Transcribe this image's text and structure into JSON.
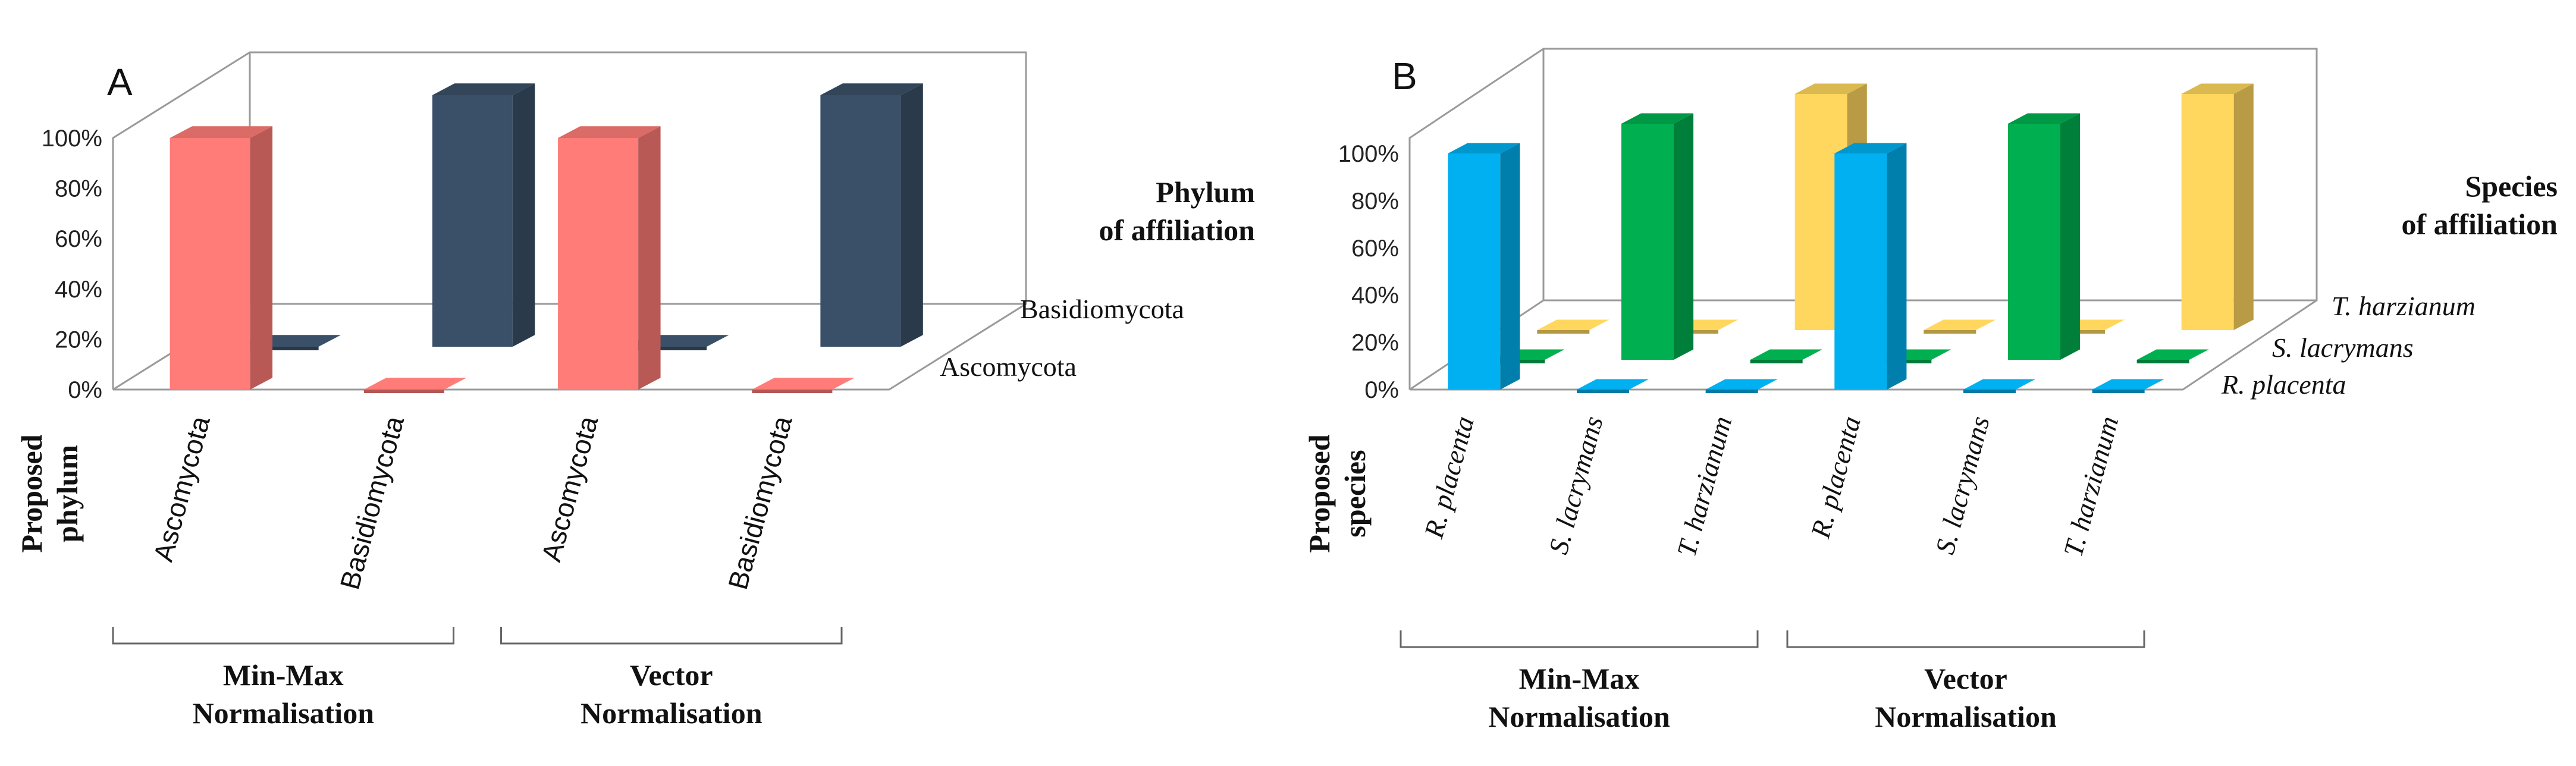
{
  "chart_data": [
    {
      "panel": "A",
      "type": "bar",
      "subtype": "3d-clustered",
      "title": "",
      "ylabel": "",
      "ylim": [
        0,
        100
      ],
      "ytick_labels": [
        "0%",
        "20%",
        "40%",
        "60%",
        "80%",
        "100%"
      ],
      "depth_title_line1": "Phylum",
      "depth_title_line2": "of affiliation",
      "depth_categories": [
        "Ascomycota",
        "Basidiomycota"
      ],
      "proposed_label_line1": "Proposed",
      "proposed_label_line2": "phylum",
      "categories": [
        "Ascomycota",
        "Basidiomycota",
        "Ascomycota",
        "Basidiomycota"
      ],
      "groups": [
        {
          "line1": "Min-Max",
          "line2": "Normalisation",
          "categories": [
            0,
            1
          ]
        },
        {
          "line1": "Vector",
          "line2": "Normalisation",
          "categories": [
            2,
            3
          ]
        }
      ],
      "series": [
        {
          "name": "Ascomycota",
          "color": "#FF7C78",
          "values": [
            100,
            0,
            100,
            0
          ]
        },
        {
          "name": "Basidiomycota",
          "color": "#3A5068",
          "values": [
            0,
            100,
            0,
            100
          ]
        }
      ]
    },
    {
      "panel": "B",
      "type": "bar",
      "subtype": "3d-clustered",
      "title": "",
      "ylabel": "",
      "ylim": [
        0,
        100
      ],
      "ytick_labels": [
        "0%",
        "20%",
        "40%",
        "60%",
        "80%",
        "100%"
      ],
      "depth_title_line1": "Species",
      "depth_title_line2": "of affiliation",
      "depth_categories": [
        "R. placenta",
        "S. lacrymans",
        "T. harzianum"
      ],
      "proposed_label_line1": "Proposed",
      "proposed_label_line2": "species",
      "categories": [
        "R. placenta",
        "S. lacrymans",
        "T. harzianum",
        "R. placenta",
        "S. lacrymans",
        "T. harzianum"
      ],
      "groups": [
        {
          "line1": "Min-Max",
          "line2": "Normalisation",
          "categories": [
            0,
            1,
            2
          ]
        },
        {
          "line1": "Vector",
          "line2": "Normalisation",
          "categories": [
            3,
            4,
            5
          ]
        }
      ],
      "series": [
        {
          "name": "R. placenta",
          "color": "#00B0F0",
          "values": [
            100,
            0,
            0,
            100,
            0,
            0
          ]
        },
        {
          "name": "S. lacrymans",
          "color": "#00B050",
          "values": [
            0,
            100,
            0,
            0,
            100,
            0
          ]
        },
        {
          "name": "T. harzianum",
          "color": "#FFD75E",
          "values": [
            0,
            0,
            100,
            0,
            0,
            100
          ]
        }
      ]
    }
  ]
}
